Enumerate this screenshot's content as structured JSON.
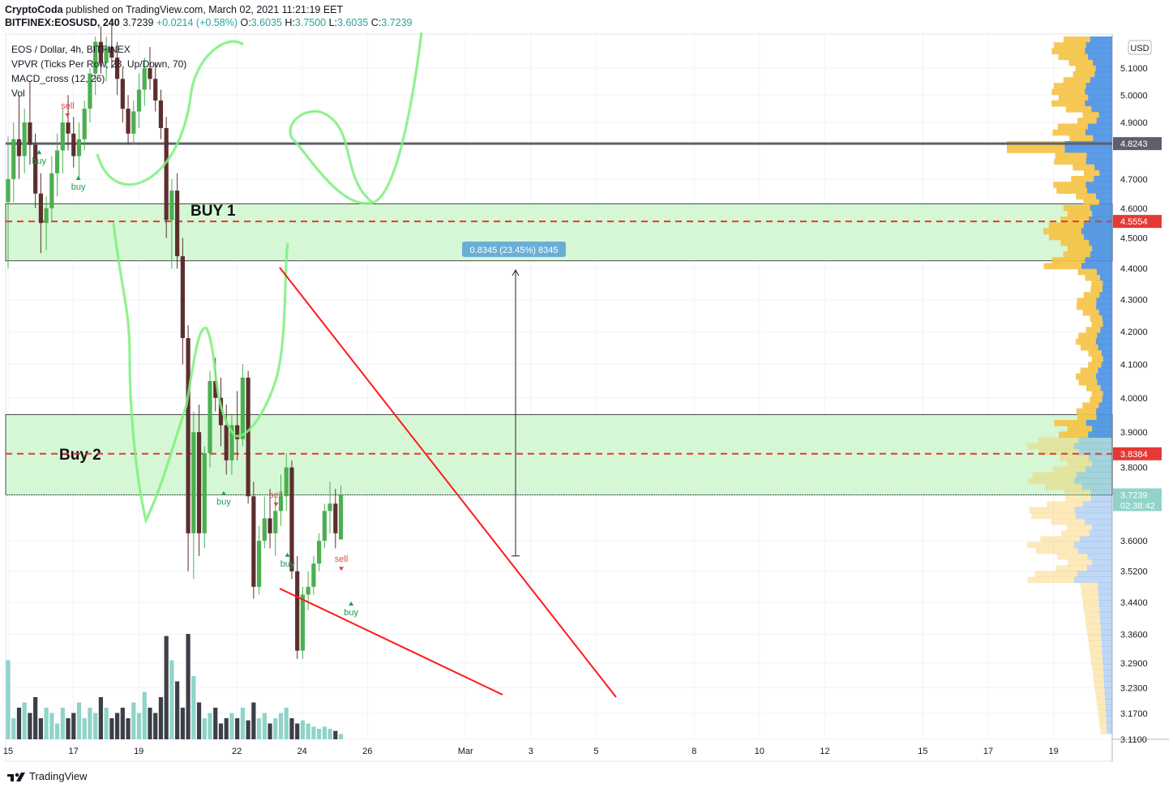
{
  "header": {
    "publisher": "CryptoCoda",
    "published_text": "published on TradingView.com, March 02, 2021 11:21:19 EET",
    "symbol": "BITFINEX:EOSUSD, 240",
    "last": "3.7239",
    "change": "+0.0214 (+0.58%)",
    "o_label": "O:",
    "o": "3.6035",
    "h_label": "H:",
    "h": "3.7500",
    "l_label": "L:",
    "l": "3.6035",
    "c_label": "C:",
    "c": "3.7239"
  },
  "legend": {
    "title": "EOS / Dollar, 4h, BITFINEX",
    "vpvr": "VPVR (Ticks Per Row, 23, Up/Down, 70)",
    "macd": "MACD_cross (12, 26)",
    "vol": "Vol"
  },
  "footer": {
    "brand": "TradingView"
  },
  "colors": {
    "up": "#4caf50",
    "down": "#5d2e2e",
    "vol_up": "#8fd3c9",
    "vol_down": "#3c3f48",
    "zone_fill": "#d6f7d6",
    "dashed": "#e53935",
    "trend": "#ff1a1a",
    "freehand": "#7cf07c",
    "profile_orange": "#f5c242",
    "profile_blue": "#4a90e2"
  },
  "chart_data": {
    "type": "candlestick",
    "ylim": [
      3.11,
      5.23
    ],
    "y_scale": "log",
    "price_axis": {
      "currency": "USD",
      "ticks": [
        "5.1000",
        "5.0000",
        "4.9000",
        "4.7000",
        "4.6000",
        "4.5000",
        "4.4000",
        "4.3000",
        "4.2000",
        "4.1000",
        "4.0000",
        "3.9000",
        "3.8000",
        "3.6000",
        "3.5200",
        "3.4400",
        "3.3600",
        "3.2900",
        "3.2300",
        "3.1700",
        "3.1100"
      ]
    },
    "time_axis": {
      "ticks": [
        "15",
        "17",
        "19",
        "22",
        "24",
        "26",
        "Mar",
        "3",
        "5",
        "8",
        "10",
        "12",
        "15",
        "17",
        "19"
      ]
    },
    "levels": [
      {
        "name": "resistance",
        "price": 4.8243,
        "label": "4.8243",
        "color": "#5d606b"
      },
      {
        "name": "buy1-dashed",
        "price": 4.5554,
        "label": "4.5554",
        "color": "#e53935"
      },
      {
        "name": "buy2-dashed",
        "price": 3.8384,
        "label": "3.8384",
        "color": "#e53935"
      },
      {
        "name": "last-price",
        "price": 3.7239,
        "label": "3.7239",
        "countdown": "02:38:42",
        "color": "#8fd3c9"
      }
    ],
    "zones": [
      {
        "label": "BUY 1",
        "top": 4.615,
        "bottom": 4.425
      },
      {
        "label": "Buy 2",
        "top": 3.951,
        "bottom": 3.724
      }
    ],
    "measure": {
      "text": "0.8345 (23.45%) 8345",
      "from": 3.56,
      "to": 4.395
    },
    "signals": [
      {
        "text": "sell",
        "kind": "sell",
        "t": 16.82,
        "price": 4.945
      },
      {
        "text": "buy",
        "kind": "buy",
        "t": 15.95,
        "price": 4.77
      },
      {
        "text": "buy",
        "kind": "buy",
        "t": 17.15,
        "price": 4.68
      },
      {
        "text": "buy",
        "kind": "buy",
        "t": 21.6,
        "price": 3.71
      },
      {
        "text": "sell",
        "kind": "sell",
        "t": 23.2,
        "price": 3.712
      },
      {
        "text": "buy",
        "kind": "buy",
        "t": 23.55,
        "price": 3.545
      },
      {
        "text": "sell",
        "kind": "sell",
        "t": 25.2,
        "price": 3.54
      },
      {
        "text": "buy",
        "kind": "buy",
        "t": 25.5,
        "price": 3.42
      }
    ],
    "candles": [
      [
        4.62,
        4.85,
        4.4,
        4.7
      ],
      [
        4.7,
        4.9,
        4.62,
        4.84
      ],
      [
        4.84,
        5.0,
        4.7,
        4.78
      ],
      [
        4.78,
        4.95,
        4.72,
        4.9
      ],
      [
        4.9,
        5.05,
        4.75,
        4.82
      ],
      [
        4.82,
        4.86,
        4.6,
        4.65
      ],
      [
        4.65,
        4.72,
        4.45,
        4.55
      ],
      [
        4.55,
        4.64,
        4.46,
        4.6
      ],
      [
        4.6,
        4.78,
        4.56,
        4.72
      ],
      [
        4.72,
        4.86,
        4.64,
        4.8
      ],
      [
        4.8,
        4.95,
        4.72,
        4.9
      ],
      [
        4.9,
        5.0,
        4.8,
        4.86
      ],
      [
        4.86,
        4.92,
        4.74,
        4.78
      ],
      [
        4.78,
        4.9,
        4.7,
        4.84
      ],
      [
        4.84,
        4.98,
        4.8,
        4.95
      ],
      [
        4.95,
        5.1,
        4.9,
        5.08
      ],
      [
        5.08,
        5.22,
        5.0,
        5.2
      ],
      [
        5.2,
        5.26,
        5.08,
        5.12
      ],
      [
        5.12,
        5.22,
        5.05,
        5.18
      ],
      [
        5.18,
        5.28,
        5.1,
        5.14
      ],
      [
        5.14,
        5.2,
        5.0,
        5.06
      ],
      [
        5.06,
        5.1,
        4.9,
        4.95
      ],
      [
        4.95,
        5.0,
        4.82,
        4.86
      ],
      [
        4.86,
        4.98,
        4.82,
        4.94
      ],
      [
        4.94,
        5.08,
        4.88,
        5.02
      ],
      [
        5.02,
        5.14,
        4.96,
        5.1
      ],
      [
        5.1,
        5.18,
        5.02,
        5.06
      ],
      [
        5.06,
        5.12,
        4.94,
        4.98
      ],
      [
        4.98,
        5.02,
        4.84,
        4.88
      ],
      [
        4.88,
        4.92,
        4.5,
        4.56
      ],
      [
        4.56,
        4.7,
        4.4,
        4.66
      ],
      [
        4.66,
        4.72,
        4.4,
        4.44
      ],
      [
        4.44,
        4.5,
        4.1,
        4.18
      ],
      [
        4.18,
        4.22,
        3.52,
        3.62
      ],
      [
        3.62,
        3.96,
        3.5,
        3.9
      ],
      [
        3.9,
        3.98,
        3.56,
        3.62
      ],
      [
        3.62,
        3.86,
        3.58,
        3.84
      ],
      [
        3.84,
        4.08,
        3.8,
        4.05
      ],
      [
        4.05,
        4.12,
        3.96,
        4.0
      ],
      [
        4.0,
        4.06,
        3.86,
        3.92
      ],
      [
        3.92,
        3.98,
        3.78,
        3.82
      ],
      [
        3.82,
        3.95,
        3.78,
        3.92
      ],
      [
        3.92,
        4.02,
        3.82,
        3.88
      ],
      [
        3.88,
        4.1,
        3.86,
        4.06
      ],
      [
        4.06,
        4.08,
        3.7,
        3.72
      ],
      [
        3.72,
        3.76,
        3.45,
        3.48
      ],
      [
        3.48,
        3.64,
        3.46,
        3.6
      ],
      [
        3.6,
        3.72,
        3.58,
        3.66
      ],
      [
        3.66,
        3.74,
        3.58,
        3.62
      ],
      [
        3.62,
        3.72,
        3.56,
        3.68
      ],
      [
        3.68,
        3.78,
        3.64,
        3.72
      ],
      [
        3.72,
        3.84,
        3.68,
        3.8
      ],
      [
        3.8,
        3.82,
        3.5,
        3.52
      ],
      [
        3.52,
        3.56,
        3.3,
        3.32
      ],
      [
        3.32,
        3.48,
        3.3,
        3.46
      ],
      [
        3.46,
        3.52,
        3.42,
        3.48
      ],
      [
        3.48,
        3.56,
        3.46,
        3.54
      ],
      [
        3.54,
        3.62,
        3.52,
        3.6
      ],
      [
        3.6,
        3.7,
        3.58,
        3.68
      ],
      [
        3.68,
        3.76,
        3.62,
        3.7
      ],
      [
        3.7,
        3.74,
        3.58,
        3.62
      ],
      [
        3.6035,
        3.75,
        3.6035,
        3.7239
      ]
    ],
    "volume": [
      0.75,
      0.2,
      0.3,
      0.35,
      0.25,
      0.4,
      0.2,
      0.3,
      0.25,
      0.15,
      0.3,
      0.2,
      0.25,
      0.35,
      0.2,
      0.3,
      0.25,
      0.4,
      0.3,
      0.2,
      0.25,
      0.3,
      0.2,
      0.35,
      0.25,
      0.45,
      0.3,
      0.25,
      0.4,
      0.98,
      0.75,
      0.55,
      0.3,
      1.0,
      0.6,
      0.35,
      0.2,
      0.25,
      0.3,
      0.15,
      0.2,
      0.25,
      0.2,
      0.3,
      0.18,
      0.35,
      0.2,
      0.25,
      0.15,
      0.2,
      0.25,
      0.3,
      0.2,
      0.15,
      0.18,
      0.15,
      0.12,
      0.1,
      0.12,
      0.1,
      0.08,
      0.05
    ]
  }
}
